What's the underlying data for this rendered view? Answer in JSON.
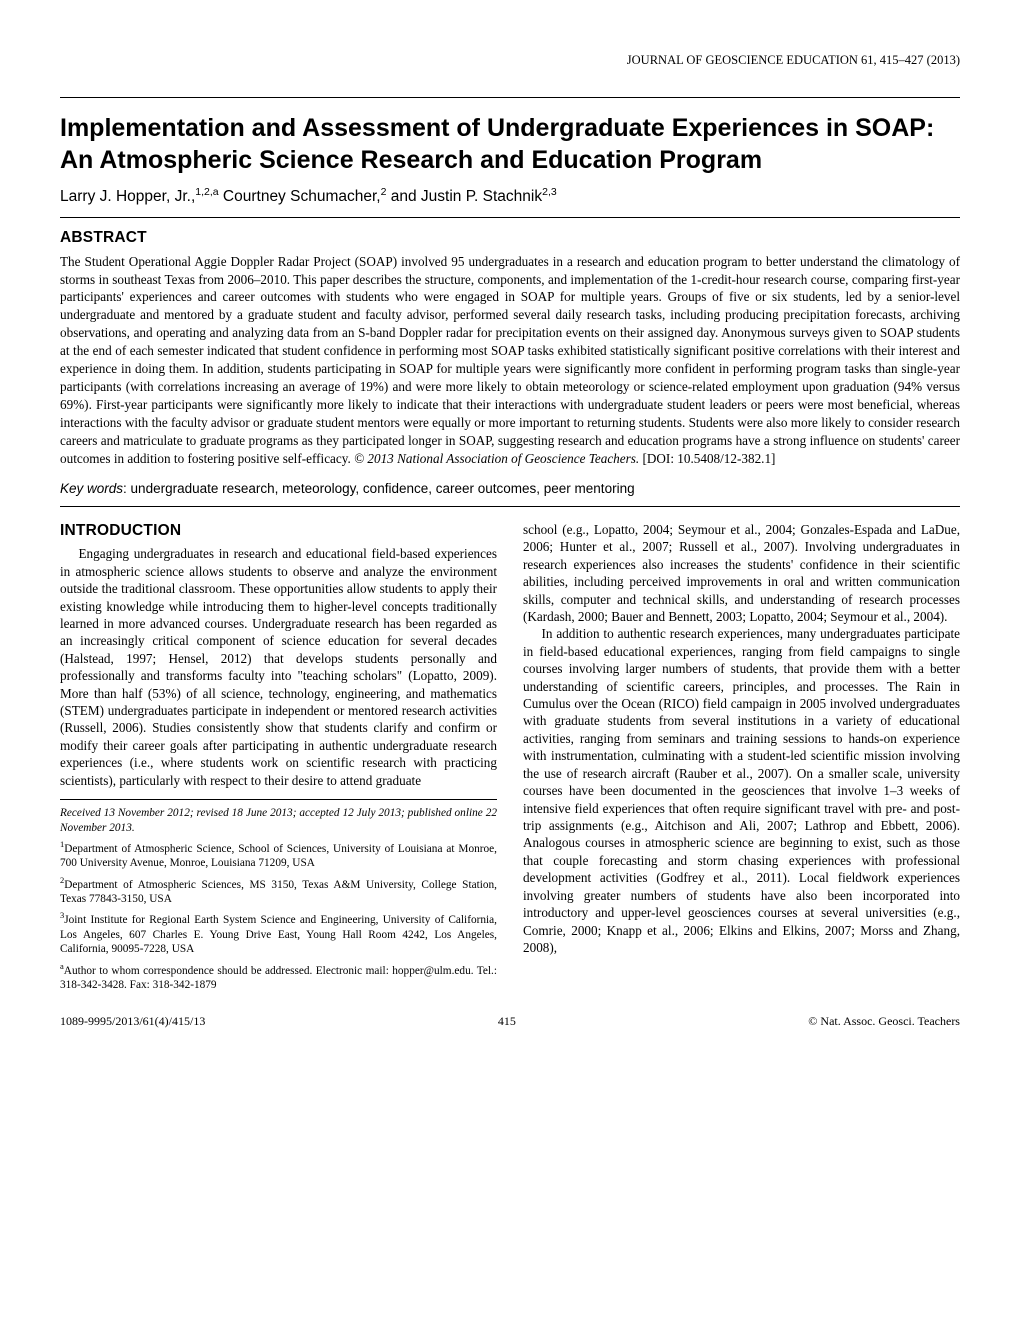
{
  "journal_header": "JOURNAL OF GEOSCIENCE EDUCATION 61, 415–427 (2013)",
  "title": "Implementation and Assessment of Undergraduate Experiences in SOAP: An Atmospheric Science Research and Education Program",
  "authors_html": "Larry J. Hopper, Jr.,<sup>1,2,a</sup> Courtney Schumacher,<sup>2</sup> and Justin P. Stachnik<sup>2,3</sup>",
  "abstract_heading": "ABSTRACT",
  "abstract": "The Student Operational Aggie Doppler Radar Project (SOAP) involved 95 undergraduates in a research and education program to better understand the climatology of storms in southeast Texas from 2006–2010. This paper describes the structure, components, and implementation of the 1-credit-hour research course, comparing first-year participants' experiences and career outcomes with students who were engaged in SOAP for multiple years. Groups of five or six students, led by a senior-level undergraduate and mentored by a graduate student and faculty advisor, performed several daily research tasks, including producing precipitation forecasts, archiving observations, and operating and analyzing data from an S-band Doppler radar for precipitation events on their assigned day. Anonymous surveys given to SOAP students at the end of each semester indicated that student confidence in performing most SOAP tasks exhibited statistically significant positive correlations with their interest and experience in doing them. In addition, students participating in SOAP for multiple years were significantly more confident in performing program tasks than single-year participants (with correlations increasing an average of 19%) and were more likely to obtain meteorology or science-related employment upon graduation (94% versus 69%). First-year participants were significantly more likely to indicate that their interactions with undergraduate student leaders or peers were most beneficial, whereas interactions with the faculty advisor or graduate student mentors were equally or more important to returning students. Students were also more likely to consider research careers and matriculate to graduate programs as they participated longer in SOAP, suggesting research and education programs have a strong influence on students' career outcomes in addition to fostering positive self-efficacy. © 2013 National Association of Geoscience Teachers. [DOI: 10.5408/12-382.1]",
  "keywords_label": "Key words",
  "keywords": "undergraduate research, meteorology, confidence, career outcomes, peer mentoring",
  "intro_heading": "INTRODUCTION",
  "intro_p1": "Engaging undergraduates in research and educational field-based experiences in atmospheric science allows students to observe and analyze the environment outside the traditional classroom. These opportunities allow students to apply their existing knowledge while introducing them to higher-level concepts traditionally learned in more advanced courses. Undergraduate research has been regarded as an increasingly critical component of science education for several decades (Halstead, 1997; Hensel, 2012) that develops students personally and professionally and transforms faculty into \"teaching scholars\" (Lopatto, 2009). More than half (53%) of all science, technology, engineering, and mathematics (STEM) undergraduates participate in independent or mentored research activities (Russell, 2006). Studies consistently show that students clarify and confirm or modify their career goals after participating in authentic undergraduate research experiences (i.e., where students work on scientific research with practicing scientists), particularly with respect to their desire to attend graduate",
  "intro_p2": "school (e.g., Lopatto, 2004; Seymour et al., 2004; Gonzales-Espada and LaDue, 2006; Hunter et al., 2007; Russell et al., 2007). Involving undergraduates in research experiences also increases the students' confidence in their scientific abilities, including perceived improvements in oral and written communication skills, computer and technical skills, and understanding of research processes (Kardash, 2000; Bauer and Bennett, 2003; Lopatto, 2004; Seymour et al., 2004).",
  "intro_p3": "In addition to authentic research experiences, many undergraduates participate in field-based educational experiences, ranging from field campaigns to single courses involving larger numbers of students, that provide them with a better understanding of scientific careers, principles, and processes. The Rain in Cumulus over the Ocean (RICO) field campaign in 2005 involved undergraduates with graduate students from several institutions in a variety of educational activities, ranging from seminars and training sessions to hands-on experience with instrumentation, culminating with a student-led scientific mission involving the use of research aircraft (Rauber et al., 2007). On a smaller scale, university courses have been documented in the geosciences that involve 1–3 weeks of intensive field experiences that often require significant travel with pre- and post-trip assignments (e.g., Aitchison and Ali, 2007; Lathrop and Ebbett, 2006). Analogous courses in atmospheric science are beginning to exist, such as those that couple forecasting and storm chasing experiences with professional development activities (Godfrey et al., 2011). Local fieldwork experiences involving greater numbers of students have also been incorporated into introductory and upper-level geosciences courses at several universities (e.g., Comrie, 2000; Knapp et al., 2006; Elkins and Elkins, 2007; Morss and Zhang, 2008),",
  "received": "Received 13 November 2012; revised 18 June 2013; accepted 12 July 2013; published online 22 November 2013.",
  "aff1": "Department of Atmospheric Science, School of Sciences, University of Louisiana at Monroe, 700 University Avenue, Monroe, Louisiana 71209, USA",
  "aff2": "Department of Atmospheric Sciences, MS 3150, Texas A&M University, College Station, Texas 77843-3150, USA",
  "aff3": "Joint Institute for Regional Earth System Science and Engineering, University of California, Los Angeles, 607 Charles E. Young Drive East, Young Hall Room 4242, Los Angeles, California, 90095-7228, USA",
  "corr": "Author to whom correspondence should be addressed. Electronic mail: hopper@ulm.edu. Tel.: 318-342-3428. Fax: 318-342-1879",
  "footer_left": "1089-9995/2013/61(4)/415/13",
  "footer_center": "415",
  "footer_right": "© Nat. Assoc. Geosci. Teachers"
}
